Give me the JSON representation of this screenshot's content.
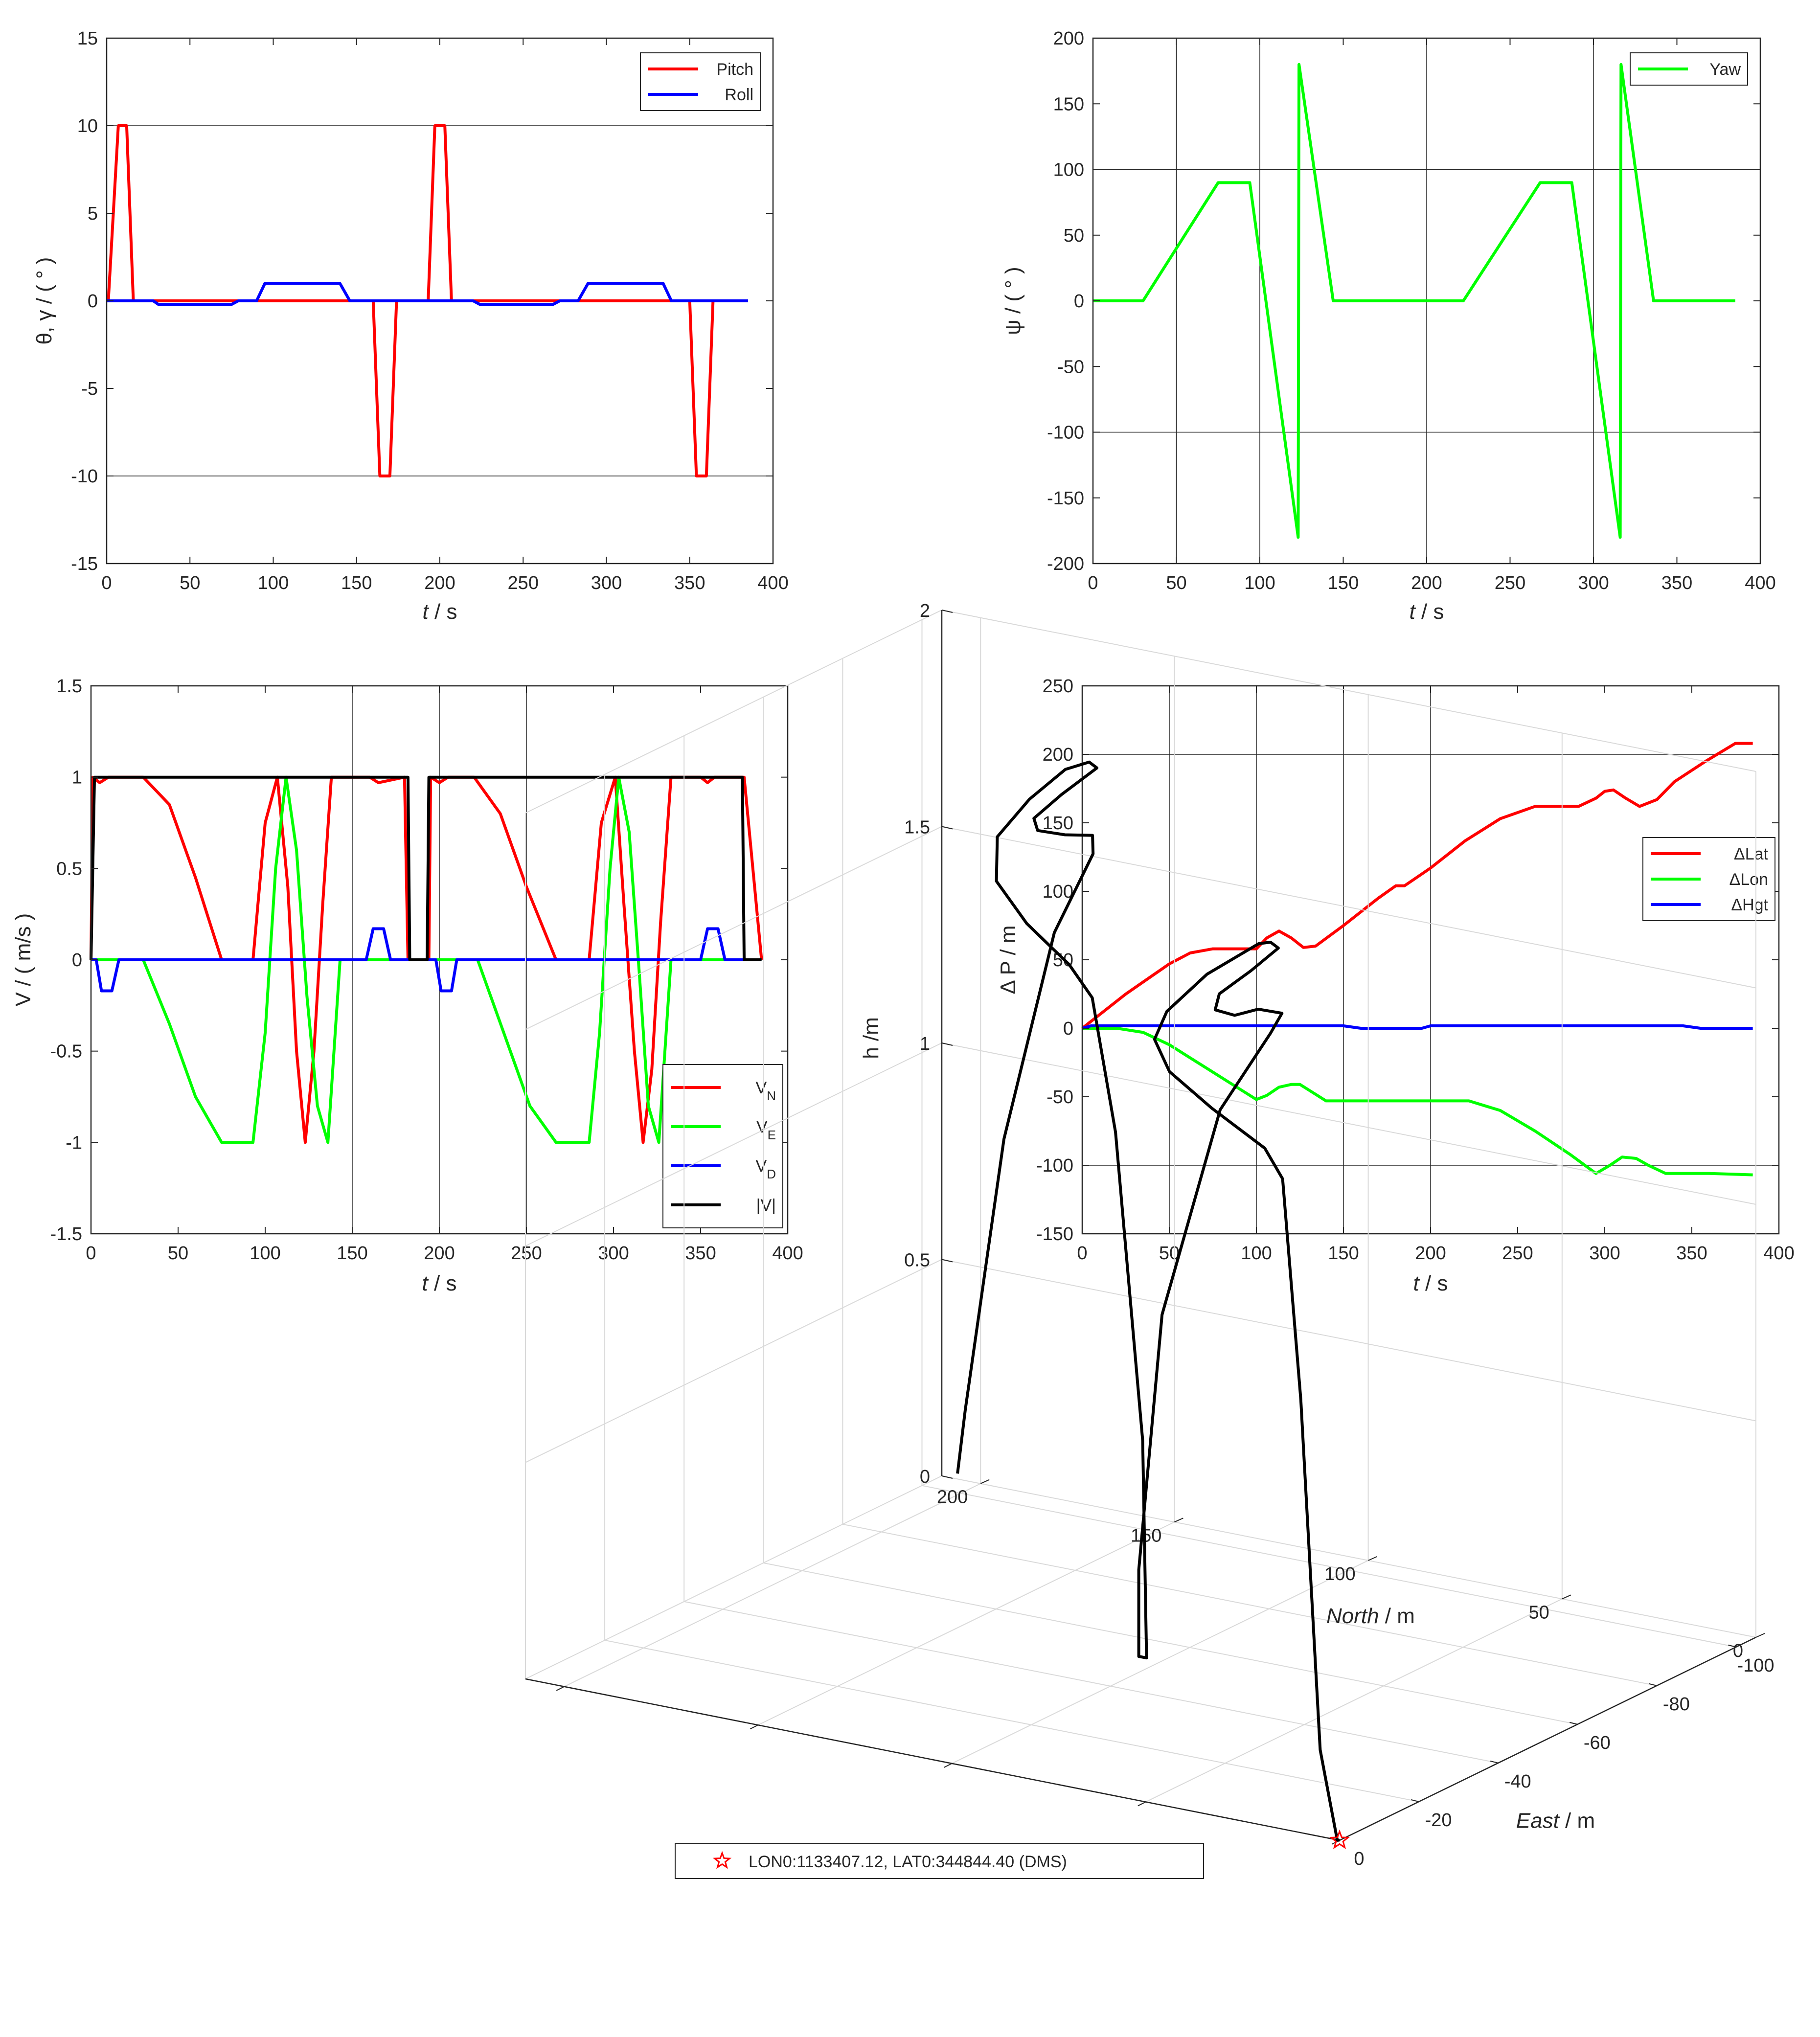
{
  "chart_data": [
    {
      "id": "attitude",
      "type": "line",
      "xlabel_parts": [
        "t",
        " / s"
      ],
      "ylabel": "θ, γ / ( ° )",
      "xlim": [
        0,
        400
      ],
      "ylim": [
        -15,
        15
      ],
      "xticks": [
        0,
        50,
        100,
        150,
        200,
        250,
        300,
        350,
        400
      ],
      "yticks": [
        -15,
        -10,
        -5,
        0,
        5,
        10,
        15
      ],
      "grid_x": [],
      "grid_y": [
        -10,
        10
      ],
      "legend_position": "top-right",
      "series": [
        {
          "name": "Pitch",
          "color": "#ff0000",
          "x": [
            0,
            1,
            7,
            12,
            16,
            160,
            164,
            170,
            174,
            193,
            197,
            203,
            207,
            350,
            354,
            360,
            364,
            385
          ],
          "y": [
            0,
            0,
            10,
            10,
            0,
            0,
            -10,
            -10,
            0,
            0,
            10,
            10,
            0,
            0,
            -10,
            -10,
            0,
            0
          ]
        },
        {
          "name": "Roll",
          "color": "#0000ff",
          "x": [
            0,
            28,
            31,
            75,
            79,
            90,
            95,
            140,
            146,
            220,
            224,
            268,
            272,
            283,
            289,
            334,
            339,
            385
          ],
          "y": [
            0,
            0,
            -0.2,
            -0.2,
            0,
            0,
            1,
            1,
            0,
            0,
            -0.2,
            -0.2,
            0,
            0,
            1,
            1,
            0,
            0
          ]
        }
      ]
    },
    {
      "id": "yaw",
      "type": "line",
      "xlabel_parts": [
        "t",
        " / s"
      ],
      "ylabel": "ψ / ( ° )",
      "xlim": [
        0,
        400
      ],
      "ylim": [
        -200,
        200
      ],
      "xticks": [
        0,
        50,
        100,
        150,
        200,
        250,
        300,
        350,
        400
      ],
      "yticks": [
        -200,
        -150,
        -100,
        -50,
        0,
        50,
        100,
        150,
        200
      ],
      "grid_x": [
        50,
        100,
        200,
        300
      ],
      "grid_y": [
        -100,
        100
      ],
      "legend_position": "top-right",
      "series": [
        {
          "name": "Yaw",
          "color": "#00ff00",
          "x": [
            0,
            30,
            75,
            94,
            123,
            123.5,
            144,
            222,
            268,
            287,
            316,
            316.5,
            336,
            385
          ],
          "y": [
            0,
            0,
            90,
            90,
            -180,
            180,
            0,
            0,
            90,
            90,
            -180,
            180,
            0,
            0
          ]
        }
      ]
    },
    {
      "id": "velocity",
      "type": "line",
      "xlabel_parts": [
        "t",
        " / s"
      ],
      "ylabel": "V / ( m/s )",
      "xlim": [
        0,
        400
      ],
      "ylim": [
        -1.5,
        1.5
      ],
      "xticks": [
        0,
        50,
        100,
        150,
        200,
        250,
        300,
        350,
        400
      ],
      "yticks": [
        -1.5,
        -1,
        -0.5,
        0,
        0.5,
        1,
        1.5
      ],
      "grid_x": [
        150,
        200,
        250
      ],
      "grid_y": [],
      "legend_position": "bottom-right",
      "series": [
        {
          "name": "V",
          "sub": "N",
          "color": "#ff0000",
          "x": [
            0,
            1,
            5,
            10,
            15,
            30,
            45,
            60,
            75,
            93,
            100,
            107,
            113,
            118,
            123,
            128,
            133,
            138,
            143,
            160,
            165,
            180,
            182,
            194,
            195,
            200,
            205,
            220,
            235,
            250,
            267,
            286,
            293,
            301,
            306,
            312,
            317,
            322,
            327,
            333,
            350,
            354,
            358,
            375,
            385
          ],
          "y": [
            0,
            1,
            0.97,
            1,
            1,
            1,
            0.85,
            0.45,
            0,
            0,
            0.75,
            1,
            0.4,
            -0.5,
            -1,
            -0.5,
            0.3,
            1,
            1,
            1,
            0.97,
            1,
            0,
            0,
            1,
            0.97,
            1,
            1,
            0.8,
            0.4,
            0,
            0,
            0.75,
            1,
            0.3,
            -0.5,
            -1,
            -0.6,
            0.2,
            1,
            1,
            0.97,
            1,
            1,
            0
          ]
        },
        {
          "name": "V",
          "sub": "E",
          "color": "#00ff00",
          "x": [
            0,
            30,
            45,
            60,
            75,
            93,
            100,
            106,
            112,
            118,
            124,
            130,
            136,
            143,
            160,
            180,
            195,
            222,
            237,
            252,
            267,
            286,
            292,
            298,
            303,
            309,
            315,
            320,
            326,
            333,
            345,
            385
          ],
          "y": [
            0,
            0,
            -0.35,
            -0.75,
            -1,
            -1,
            -0.4,
            0.5,
            1,
            0.6,
            -0.2,
            -0.8,
            -1,
            0,
            0,
            0,
            0,
            0,
            -0.4,
            -0.8,
            -1,
            -1,
            -0.4,
            0.5,
            1,
            0.7,
            -0.1,
            -0.8,
            -1,
            0,
            0,
            0
          ]
        },
        {
          "name": "V",
          "sub": "D",
          "color": "#0000ff",
          "x": [
            0,
            3,
            6,
            12,
            16,
            158,
            162,
            168,
            172,
            195,
            198,
            201,
            207,
            210,
            350,
            354,
            360,
            364,
            385
          ],
          "y": [
            0,
            0,
            -0.17,
            -0.17,
            0,
            0,
            0.17,
            0.17,
            0,
            0,
            0,
            -0.17,
            -0.17,
            0,
            0,
            0.17,
            0.17,
            0,
            0
          ]
        },
        {
          "name": "|V|",
          "sub": "",
          "color": "#000000",
          "x": [
            0,
            2,
            182,
            183,
            193,
            194,
            374,
            375,
            385
          ],
          "y": [
            0,
            1,
            1,
            0,
            0,
            1,
            1,
            0,
            0
          ]
        }
      ]
    },
    {
      "id": "position",
      "type": "line",
      "xlabel_parts": [
        "t",
        " / s"
      ],
      "ylabel": "Δ P / m",
      "xlim": [
        0,
        400
      ],
      "ylim": [
        -150,
        250
      ],
      "xticks": [
        0,
        50,
        100,
        150,
        200,
        250,
        300,
        350,
        400
      ],
      "yticks": [
        -150,
        -100,
        -50,
        0,
        50,
        100,
        150,
        200,
        250
      ],
      "grid_x": [
        50,
        100,
        150,
        200
      ],
      "grid_y": [
        -100,
        200
      ],
      "legend_position": "middle-right",
      "series": [
        {
          "name": "ΔLat",
          "color": "#ff0000",
          "x": [
            0,
            25,
            50,
            62,
            75,
            100,
            106,
            113,
            120,
            127,
            134,
            150,
            170,
            180,
            185,
            200,
            220,
            240,
            260,
            270,
            285,
            295,
            300,
            305,
            312,
            320,
            330,
            340,
            358,
            375,
            385
          ],
          "y": [
            0,
            25,
            47,
            55,
            58,
            58,
            66,
            71,
            66,
            59,
            60,
            75,
            95,
            104,
            104,
            117,
            137,
            153,
            162,
            162,
            162,
            168,
            173,
            174,
            168,
            162,
            167,
            180,
            195,
            208,
            208
          ]
        },
        {
          "name": "ΔLon",
          "color": "#00ff00",
          "x": [
            0,
            20,
            35,
            50,
            75,
            100,
            106,
            113,
            120,
            125,
            130,
            140,
            160,
            200,
            222,
            240,
            260,
            280,
            295,
            303,
            310,
            318,
            325,
            335,
            360,
            385
          ],
          "y": [
            0,
            0,
            -3,
            -12,
            -32,
            -52,
            -49,
            -43,
            -41,
            -41,
            -45,
            -53,
            -53,
            -53,
            -53,
            -60,
            -75,
            -92,
            -106,
            -100,
            -94,
            -95,
            -100,
            -106,
            -106,
            -107
          ]
        },
        {
          "name": "ΔHgt",
          "color": "#0000ff",
          "x": [
            0,
            5,
            150,
            160,
            195,
            200,
            345,
            355,
            385
          ],
          "y": [
            0,
            1.8,
            1.8,
            0,
            0,
            1.8,
            1.8,
            0,
            0
          ]
        }
      ]
    },
    {
      "id": "trajectory",
      "type": "line3d",
      "xlabel_parts": [
        "East",
        " / m"
      ],
      "ylabel_parts": [
        "North",
        " / m"
      ],
      "zlabel": "h /m",
      "east_ticks": [
        -100,
        -80,
        -60,
        -40,
        -20,
        0
      ],
      "north_ticks": [
        0,
        50,
        100,
        150,
        200
      ],
      "h_ticks": [
        0,
        0.5,
        1,
        1.5,
        2
      ],
      "legend_position": "bottom-center",
      "series": [
        {
          "name": "trajectory",
          "color": "#000000",
          "points": [
            [
              0,
              0,
              0
            ],
            [
              0,
              0.6,
              0
            ],
            [
              0,
              5,
              0.2
            ],
            [
              0,
              10,
              1.0
            ],
            [
              -0.3,
              15,
              1.5
            ],
            [
              -0.7,
              20,
              1.56
            ],
            [
              -2,
              35,
              1.62
            ],
            [
              -6,
              50,
              1.66
            ],
            [
              -12,
              60,
              1.69
            ],
            [
              -20,
              65,
              1.71
            ],
            [
              -35,
              70,
              1.72
            ],
            [
              -50,
              72,
              1.72
            ],
            [
              -53,
              72,
              1.71
            ],
            [
              -53,
              70,
              1.7
            ],
            [
              -49,
              73,
              1.66
            ],
            [
              -43,
              75,
              1.63
            ],
            [
              -40,
              73,
              1.61
            ],
            [
              -41,
              69,
              1.6
            ],
            [
              -45,
              67,
              1.6
            ],
            [
              -50,
              66,
              1.57
            ],
            [
              -53,
              72,
              1.5
            ],
            [
              -53,
              85,
              1.3
            ],
            [
              -53,
              100,
              0.8
            ],
            [
              -53,
              106,
              0.2
            ],
            [
              -53,
              106,
              0
            ],
            [
              -53,
              104,
              0
            ],
            [
              -53,
              105,
              0.5
            ],
            [
              -53,
              112,
              1.2
            ],
            [
              -53,
              118,
              1.5
            ],
            [
              -54,
              125,
              1.56
            ],
            [
              -58,
              140,
              1.61
            ],
            [
              -65,
              155,
              1.65
            ],
            [
              -75,
              165,
              1.69
            ],
            [
              -88,
              170,
              1.71
            ],
            [
              -100,
              173,
              1.72
            ],
            [
              -106,
              173,
              1.71
            ],
            [
              -106,
              171,
              1.7
            ],
            [
              -100,
              174,
              1.66
            ],
            [
              -94,
              175,
              1.63
            ],
            [
              -93,
              173,
              1.61
            ],
            [
              -95,
              168,
              1.6
            ],
            [
              -100,
              166,
              1.58
            ],
            [
              -106,
              172,
              1.5
            ],
            [
              -106,
              182,
              1.3
            ],
            [
              -106,
              195,
              0.8
            ],
            [
              -107,
              206,
              0.15
            ],
            [
              -107,
              208,
              0
            ]
          ]
        },
        {
          "name": "LON0:1133407.12, LAT0:344844.40 (DMS)",
          "color": "#ff0000",
          "marker": "star",
          "points": [
            [
              0,
              0,
              0
            ]
          ]
        }
      ]
    }
  ]
}
